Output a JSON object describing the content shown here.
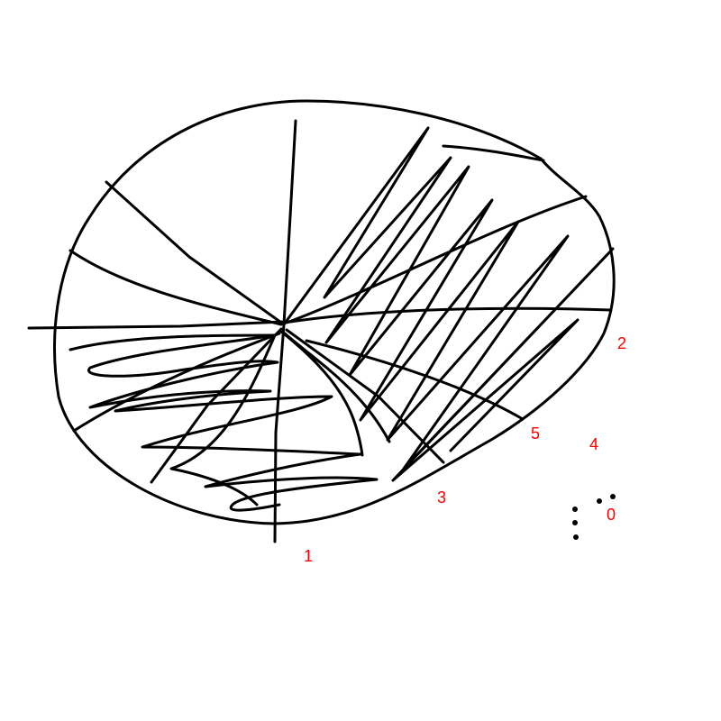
{
  "colors": {
    "ink": "#000000",
    "label": "#ff0000",
    "background": "#ffffff"
  },
  "labels": [
    "0",
    "1",
    "2",
    "3",
    "4",
    "5"
  ]
}
